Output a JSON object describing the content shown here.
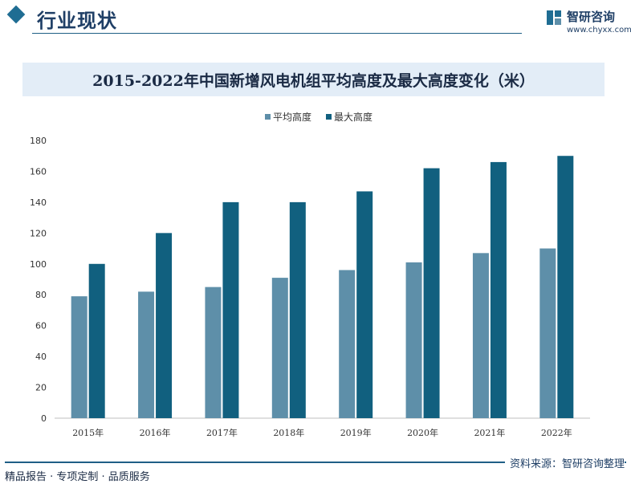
{
  "header": {
    "section_title": "行业现状",
    "logo_name": "智研咨询",
    "logo_url": "www.chyxx.com",
    "accent_color": "#1f6d93"
  },
  "chart_data": {
    "type": "bar",
    "title": "2015-2022年中国新增风电机组平均高度及最大高度变化（米）",
    "categories": [
      "2015年",
      "2016年",
      "2017年",
      "2018年",
      "2019年",
      "2020年",
      "2021年",
      "2022年"
    ],
    "series": [
      {
        "name": "平均高度",
        "color": "#5e8fa9",
        "values": [
          79,
          82,
          85,
          91,
          96,
          101,
          107,
          110
        ]
      },
      {
        "name": "最大高度",
        "color": "#11607f",
        "values": [
          100,
          120,
          140,
          140,
          147,
          162,
          166,
          170
        ]
      }
    ],
    "ylim": [
      0,
      180
    ],
    "yticks": [
      0,
      20,
      40,
      60,
      80,
      100,
      120,
      140,
      160,
      180
    ],
    "grid": false,
    "legend": "top-center"
  },
  "footer": {
    "left_text": "精品报告 · 专项定制 · 品质服务",
    "source": "资料来源：智研咨询整理"
  }
}
